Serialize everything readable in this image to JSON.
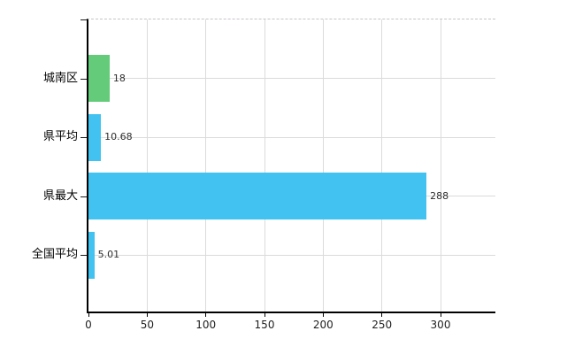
{
  "chart_data": {
    "type": "bar",
    "orientation": "horizontal",
    "title": "",
    "xlabel": "",
    "ylabel": "",
    "categories": [
      "城南区",
      "県平均",
      "県最大",
      "全国平均"
    ],
    "values": [
      18,
      10.68,
      288,
      5.01
    ],
    "value_labels": [
      "18",
      "10.68",
      "288",
      "5.01"
    ],
    "series": [
      {
        "name": "",
        "values": [
          18,
          10.68,
          288,
          5.01
        ]
      }
    ],
    "bar_colors": [
      "#64CB7A",
      "#41C2F0",
      "#41C2F0",
      "#41C2F0"
    ],
    "x_ticks": [
      "0",
      "50",
      "100",
      "150",
      "200",
      "250",
      "300"
    ],
    "x_tick_values": [
      0,
      50,
      100,
      150,
      200,
      250,
      300
    ],
    "xlim": [
      0,
      347
    ],
    "grid": true,
    "grid_on": "both",
    "legend_position": "none",
    "colors": {
      "background": "#ffffff",
      "axis": "#000000",
      "gridline": "#dbdbdb",
      "top_border_dashed": "#c9c3c9",
      "category_label": "#000000",
      "value_label": "#2e2e2e",
      "tick_label": "#1f1f1f"
    }
  }
}
